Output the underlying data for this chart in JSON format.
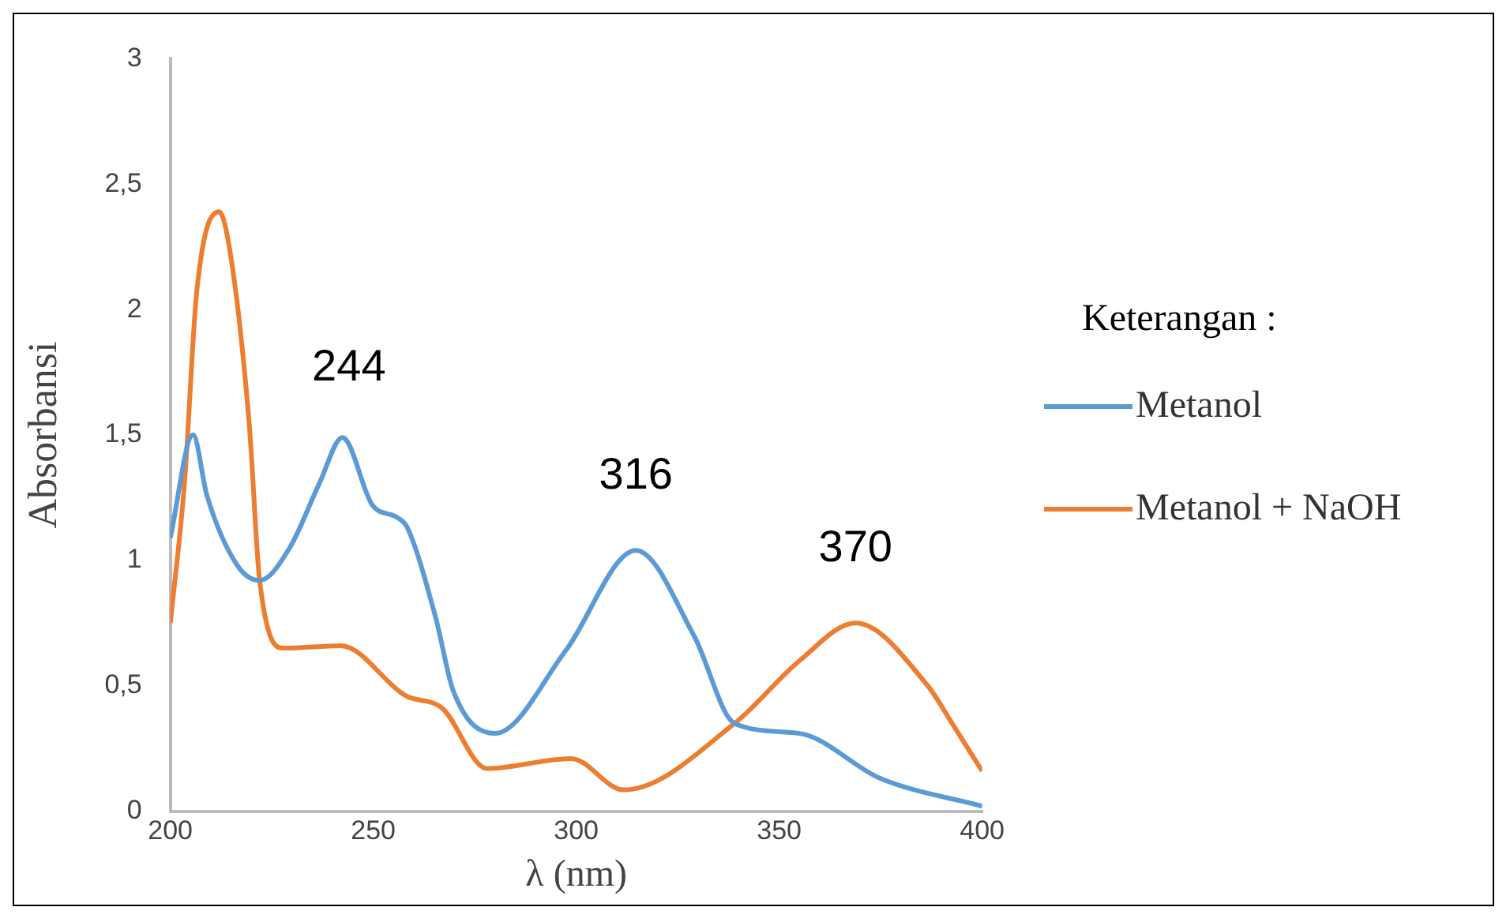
{
  "chart_data": {
    "type": "line",
    "xlabel": "λ (nm)",
    "ylabel": "Absorbansi",
    "legend_title": "Keterangan :",
    "legend": "right",
    "grid": false,
    "marker": "none",
    "line_style": "solid",
    "xlim": [
      200,
      400
    ],
    "xticks": [
      200,
      250,
      300,
      350,
      400
    ],
    "ylim": [
      0,
      3
    ],
    "yticks": [
      0,
      {
        "value": 0.5,
        "label": "0,5"
      },
      1,
      {
        "value": 1.5,
        "label": "1,5"
      },
      2,
      {
        "value": 2.5,
        "label": "2,5"
      },
      3
    ],
    "series": [
      {
        "name": "Metanol",
        "color": "#5b9bd5",
        "x": [
          200,
          205.6,
          209,
          216.5,
          222,
          229.4,
          236.8,
          242.4,
          249.8,
          256,
          258.4,
          265.4,
          269.7,
          280,
          297.4,
          314.7,
          329,
          339,
          355,
          375,
          400
        ],
        "values": [
          1.09,
          1.5,
          1.26,
          0.98,
          0.92,
          1.05,
          1.31,
          1.49,
          1.22,
          1.17,
          1.13,
          0.77,
          0.48,
          0.31,
          0.64,
          1.04,
          0.7,
          0.35,
          0.31,
          0.13,
          0.02
        ]
      },
      {
        "name": "Metanol + NaOH",
        "color": "#ed7d31",
        "x": [
          200,
          203.5,
          206.5,
          212,
          215.2,
          219.5,
          222,
          228,
          242,
          258,
          267,
          278,
          298.7,
          311.7,
          339,
          355,
          368.8,
          386.6,
          392.6,
          400
        ],
        "values": [
          0.75,
          1.31,
          2.07,
          2.39,
          2.18,
          1.53,
          0.92,
          0.65,
          0.66,
          0.46,
          0.41,
          0.17,
          0.21,
          0.085,
          0.35,
          0.6,
          0.75,
          0.5,
          0.35,
          0.16
        ]
      }
    ],
    "annotations": [
      {
        "text": "244",
        "x": 244,
        "y": 1.47
      },
      {
        "text": "316",
        "x": 314.7,
        "y": 1.04
      },
      {
        "text": "370",
        "x": 368.8,
        "y": 0.75
      }
    ]
  }
}
